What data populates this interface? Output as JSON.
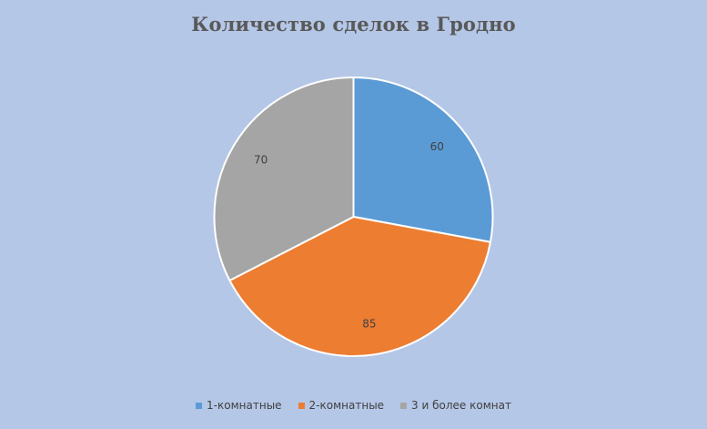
{
  "chart_data": {
    "type": "pie",
    "title": "Количество сделок в Гродно",
    "categories": [
      "1-комнатные",
      "2-комнатные",
      "3 и более комнат"
    ],
    "values": [
      60,
      85,
      70
    ],
    "colors": [
      "#5b9bd5",
      "#ed7d31",
      "#a5a5a5"
    ],
    "data_labels": [
      "60",
      "85",
      "70"
    ],
    "legend_position": "bottom",
    "start_angle": "12 o'clock, clockwise"
  }
}
